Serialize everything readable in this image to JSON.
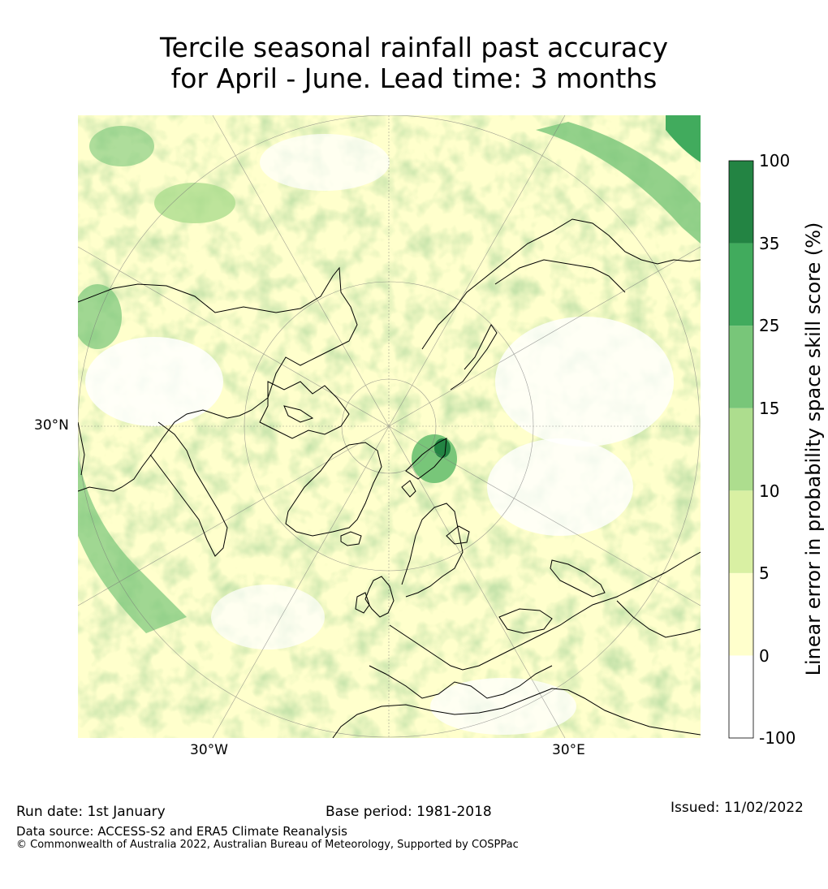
{
  "title": {
    "line1": "Tercile seasonal rainfall past accuracy",
    "line2": "for April - June. Lead time: 3 months"
  },
  "map_labels": {
    "lat_30n": "30°N",
    "lon_30w": "30°W",
    "lon_30e": "30°E"
  },
  "colorbar": {
    "title": "Linear error in probability space skill score (%)",
    "ticks": [
      "100",
      "35",
      "25",
      "15",
      "10",
      "5",
      "0",
      "-100"
    ],
    "bins": [
      {
        "from": "-100",
        "to": "0",
        "color": "#ffffff"
      },
      {
        "from": "0",
        "to": "5",
        "color": "#ffffcc"
      },
      {
        "from": "5",
        "to": "10",
        "color": "#d9f0a3"
      },
      {
        "from": "10",
        "to": "15",
        "color": "#addd8e"
      },
      {
        "from": "15",
        "to": "25",
        "color": "#78c679"
      },
      {
        "from": "25",
        "to": "35",
        "color": "#41ab5d"
      },
      {
        "from": "35",
        "to": "100",
        "color": "#238443"
      }
    ]
  },
  "footer": {
    "run_date": "Run date: 1st January",
    "base_period": "Base period: 1981-2018",
    "issued": "Issued: 11/02/2022",
    "data_source": "Data source: ACCESS-S2 and ERA5 Climate Reanalysis",
    "copyright": "© Commonwealth of Australia 2022, Australian Bureau of Meteorology, Supported by COSPPac"
  }
}
